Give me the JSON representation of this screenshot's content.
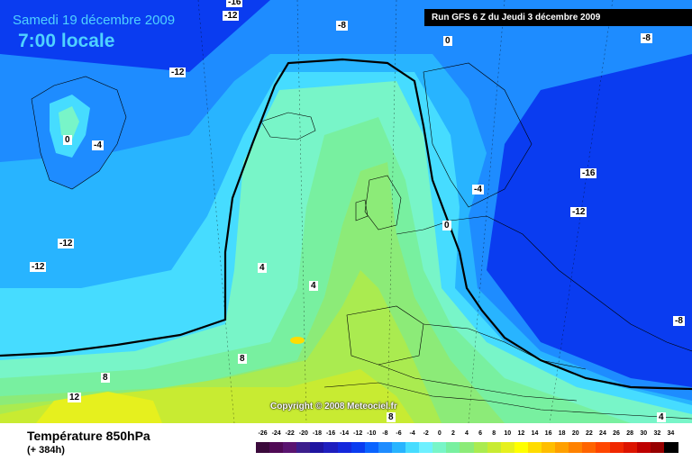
{
  "title": {
    "date": "Samedi 19 décembre 2009",
    "time": "7:00 locale"
  },
  "run_info": "Run GFS 6 Z du Jeudi 3 décembre 2009",
  "copyright": "Copyright © 2008 Meteociel.fr",
  "parameter": {
    "name": "Température 850hPa",
    "horizon": "(+ 384h)"
  },
  "contour_labels": [
    {
      "text": "-16"
    },
    {
      "text": "-12"
    },
    {
      "text": "-8"
    },
    {
      "text": "0"
    },
    {
      "text": "-8"
    },
    {
      "text": "-12"
    },
    {
      "text": "0"
    },
    {
      "text": "-4"
    },
    {
      "text": "-16"
    },
    {
      "text": "-4"
    },
    {
      "text": "-12"
    },
    {
      "text": "0"
    },
    {
      "text": "-12"
    },
    {
      "text": "-12"
    },
    {
      "text": "4"
    },
    {
      "text": "4"
    },
    {
      "text": "-8"
    },
    {
      "text": "8"
    },
    {
      "text": "8"
    },
    {
      "text": "12"
    },
    {
      "text": "8"
    },
    {
      "text": "4"
    }
  ],
  "scale": {
    "labels": [
      "-26",
      "-24",
      "-22",
      "-20",
      "-18",
      "-16",
      "-14",
      "-12",
      "-10",
      "-8",
      "-6",
      "-4",
      "-2",
      "0",
      "2",
      "4",
      "6",
      "8",
      "10",
      "12",
      "14",
      "16",
      "18",
      "20",
      "22",
      "24",
      "26",
      "28",
      "30",
      "32",
      "34"
    ],
    "colors": [
      "#3b0a3c",
      "#500a55",
      "#5a1470",
      "#3c1e8c",
      "#1e14a0",
      "#1e1ebe",
      "#1428dc",
      "#0a3cf0",
      "#0a64ff",
      "#1e8cff",
      "#28b4ff",
      "#46dcff",
      "#6ef0ff",
      "#78f5c8",
      "#78f0a0",
      "#8ceb78",
      "#aaeb50",
      "#c8eb32",
      "#e6f01e",
      "#ffff00",
      "#ffdc00",
      "#ffbe00",
      "#ffa000",
      "#ff8200",
      "#ff6400",
      "#ff4600",
      "#f02800",
      "#dc1400",
      "#be0000",
      "#960000",
      "#000000"
    ]
  }
}
